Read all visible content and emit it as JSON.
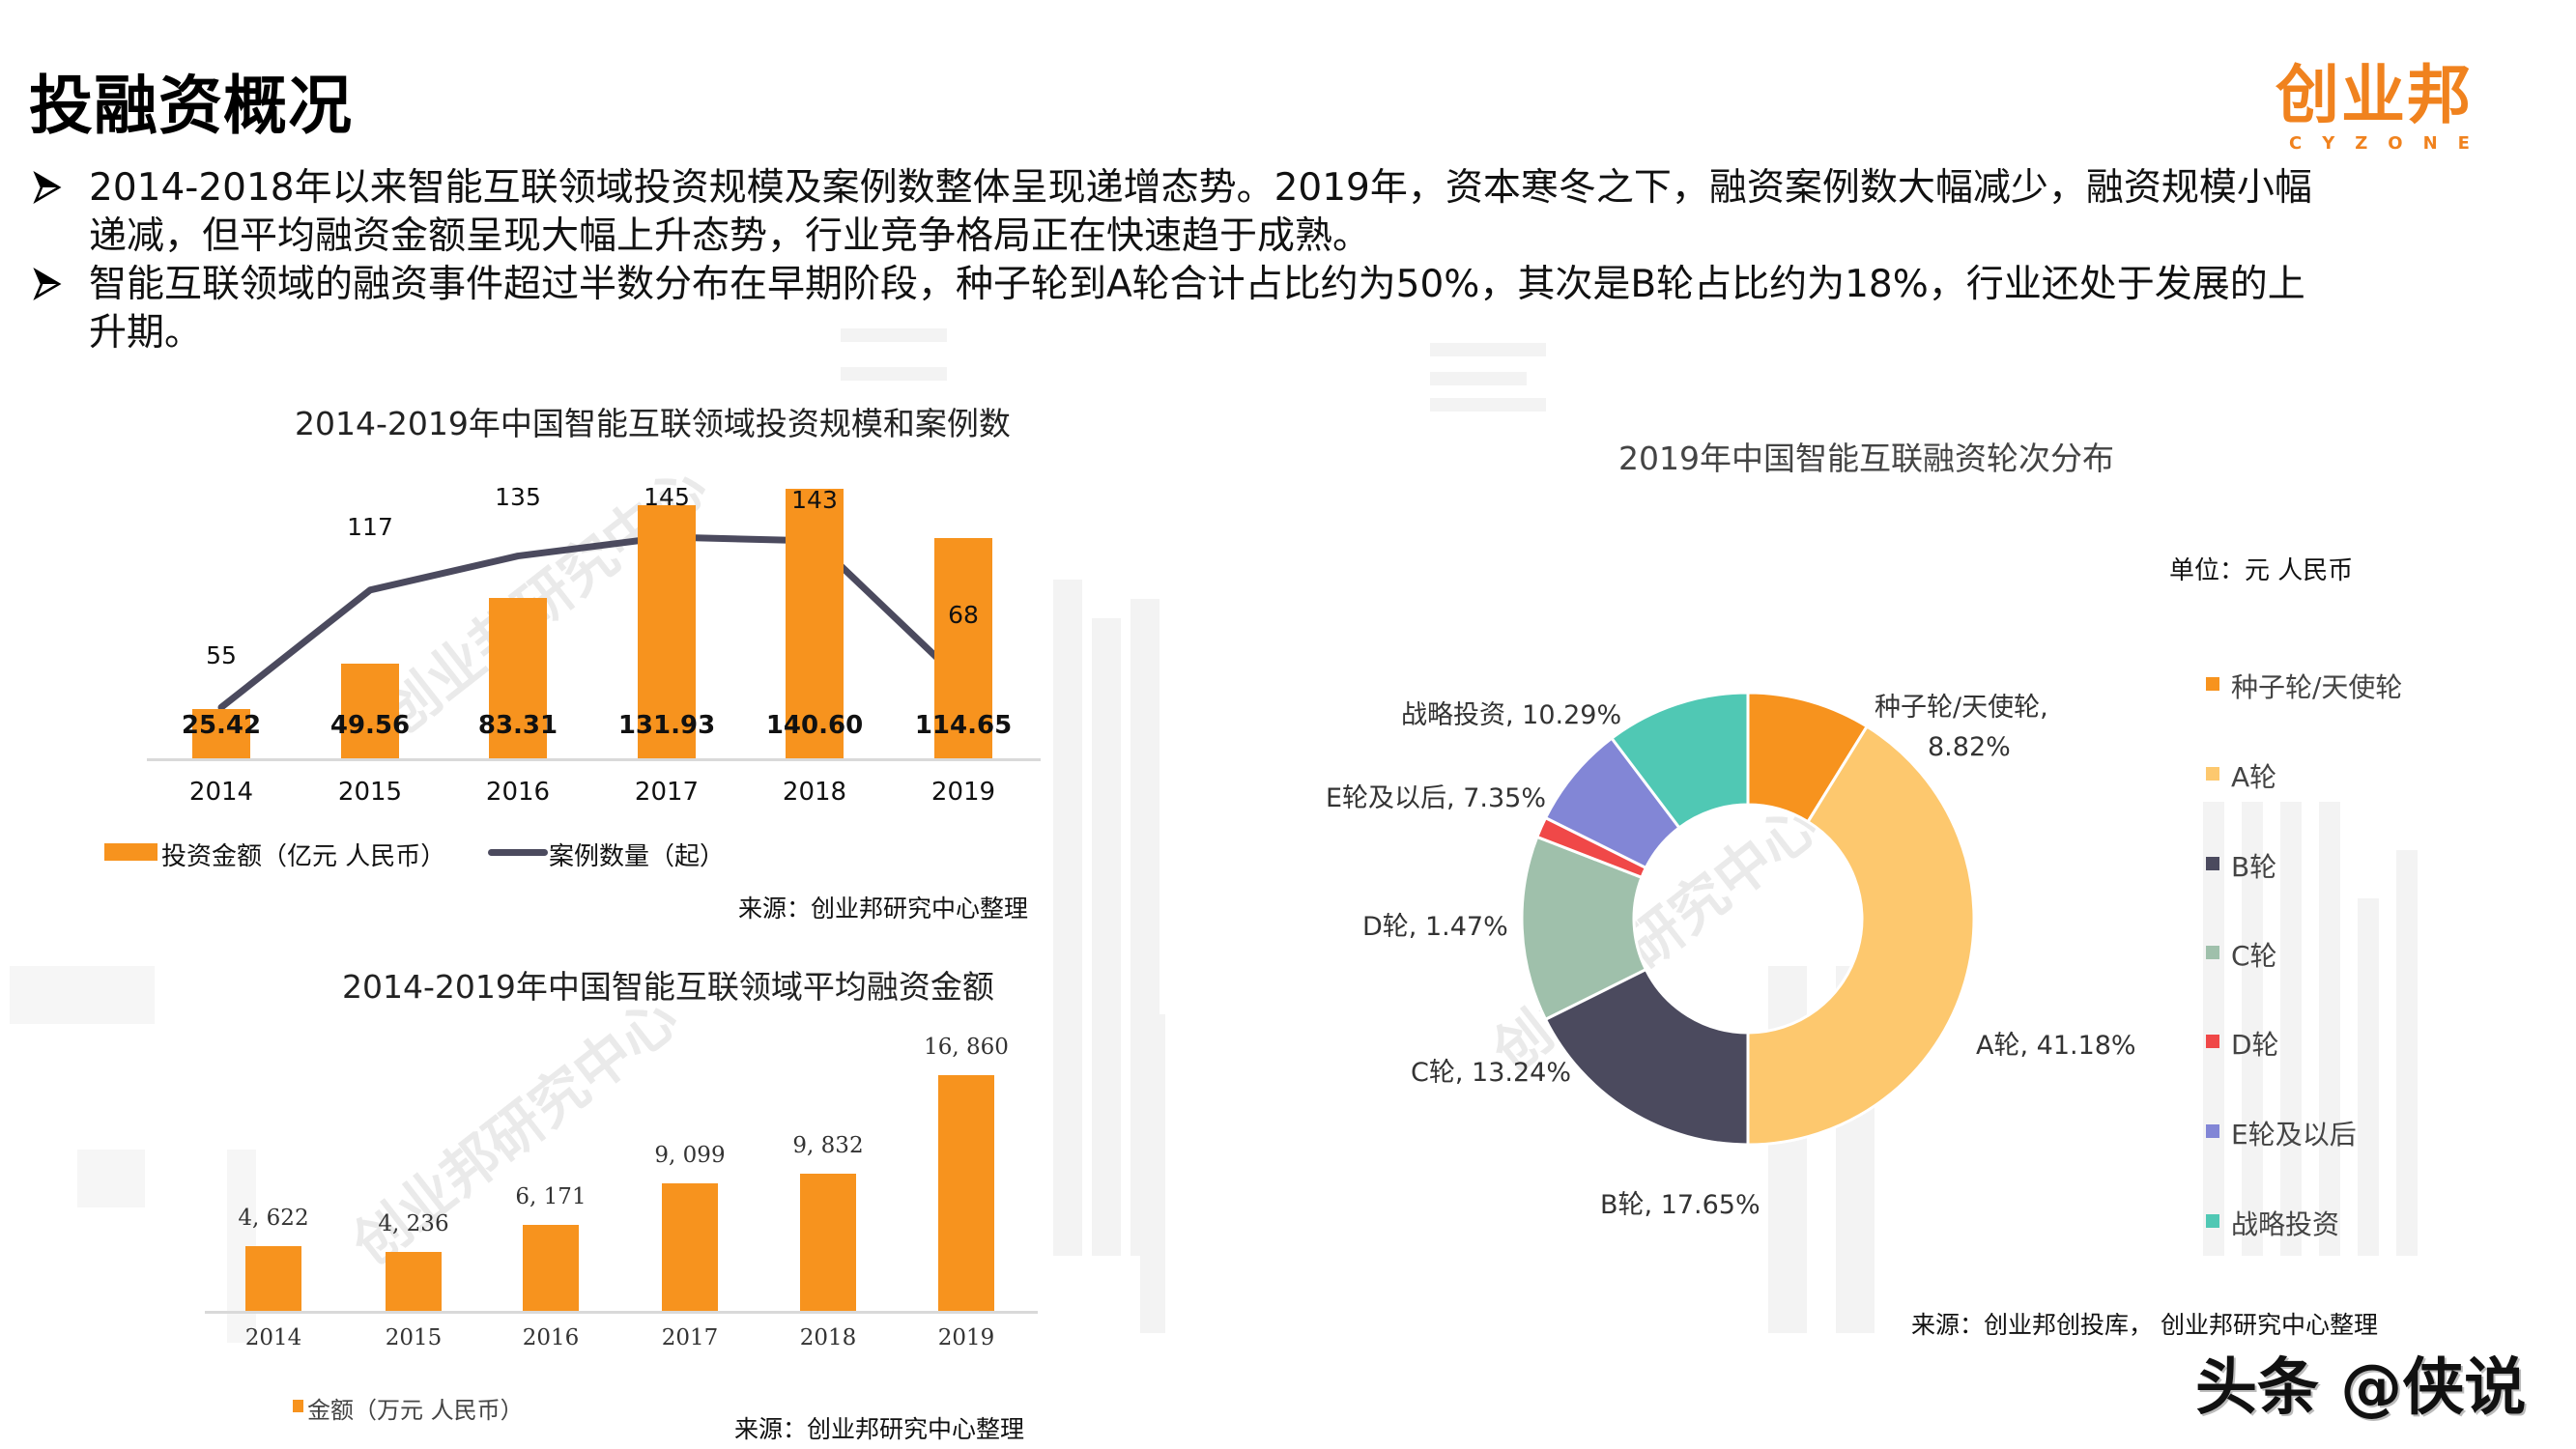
{
  "page": {
    "title": "投融资概况",
    "logo": {
      "cn": "创业邦",
      "en": "CYZONE"
    },
    "bullets": [
      {
        "lines": [
          "2014-2018年以来智能互联领域投资规模及案例数整体呈现递增态势。2019年，资本寒冬之下，融资案例数大幅减少，融资规模小幅",
          "递减，但平均融资金额呈现大幅上升态势，行业竞争格局正在快速趋于成熟。"
        ]
      },
      {
        "lines": [
          "智能互联领域的融资事件超过半数分布在早期阶段，种子轮到A轮合计占比约为50%，其次是B轮占比约为18%，行业还处于发展的上",
          "升期。"
        ]
      }
    ],
    "footer_brand": "头条 @侠说",
    "background_watermark": "创业邦研究中心",
    "colors": {
      "accent_orange": "#f7931e",
      "line_dark": "#4b4a5e",
      "logo_orange": "#f0821e"
    }
  },
  "chart_data": [
    {
      "type": "bar+line",
      "title": "2014-2019年中国智能互联领域投资规模和案例数",
      "categories": [
        "2014",
        "2015",
        "2016",
        "2017",
        "2018",
        "2019"
      ],
      "series": [
        {
          "name": "投资金额（亿元 人民币）",
          "type": "bar",
          "color": "#f7931e",
          "values": [
            25.42,
            49.56,
            83.31,
            131.93,
            140.6,
            114.65
          ],
          "labels": [
            "25.42",
            "49.56",
            "83.31",
            "131.93",
            "140.60",
            "114.65"
          ]
        },
        {
          "name": "案例数量（起）",
          "type": "line",
          "color": "#4b4a5e",
          "values": [
            55,
            117,
            135,
            145,
            143,
            68
          ],
          "labels": [
            "55",
            "117",
            "135",
            "145",
            "143",
            "68"
          ]
        }
      ],
      "legend": [
        "投资金额（亿元 人民币）",
        "案例数量（起）"
      ],
      "legend_position": "bottom",
      "grid": false,
      "source": "来源：创业邦研究中心整理"
    },
    {
      "type": "bar",
      "title": "2014-2019年中国智能互联领域平均融资金额",
      "categories": [
        "2014",
        "2015",
        "2016",
        "2017",
        "2018",
        "2019"
      ],
      "values": [
        4622,
        4236,
        6171,
        9099,
        9832,
        16860
      ],
      "labels": [
        "4, 622",
        "4, 236",
        "6, 171",
        "9, 099",
        "9, 832",
        "16, 860"
      ],
      "legend": [
        "金额（万元 人民币）"
      ],
      "legend_position": "bottom",
      "grid": false,
      "source": "来源：创业邦研究中心整理"
    },
    {
      "type": "pie",
      "style": "donut",
      "title": "2019年中国智能互联融资轮次分布",
      "unit": "单位：元 人民币",
      "slices": [
        {
          "name": "种子轮/天使轮",
          "value": 8.82,
          "label": "种子轮/天使轮,",
          "label2": "8.82%",
          "color": "#f7931e"
        },
        {
          "name": "A轮",
          "value": 41.18,
          "label": "A轮, 41.18%",
          "color": "#fdc86e"
        },
        {
          "name": "B轮",
          "value": 17.65,
          "label": "B轮, 17.65%",
          "color": "#4b4a5e"
        },
        {
          "name": "C轮",
          "value": 13.24,
          "label": "C轮, 13.24%",
          "color": "#9fc0ab"
        },
        {
          "name": "D轮",
          "value": 1.47,
          "label": "D轮, 1.47%",
          "color": "#f04848"
        },
        {
          "name": "E轮及以后",
          "value": 7.35,
          "label": "E轮及以后, 7.35%",
          "color": "#8286d6"
        },
        {
          "name": "战略投资",
          "value": 10.29,
          "label": "战略投资, 10.29%",
          "color": "#50c8b4"
        }
      ],
      "legend_position": "right",
      "source": "来源：创业邦创投库， 创业邦研究中心整理"
    }
  ]
}
